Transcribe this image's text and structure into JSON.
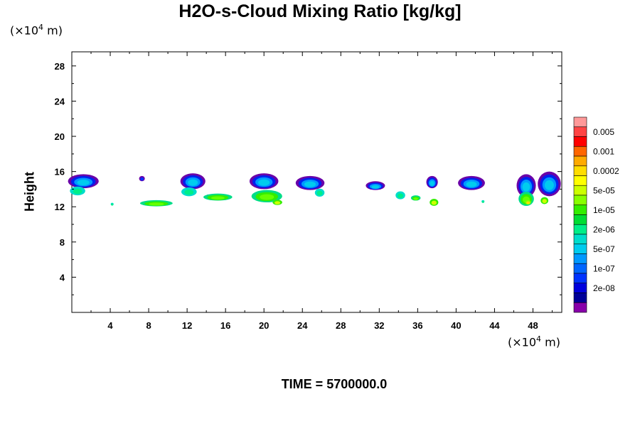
{
  "chart_data": {
    "type": "heatmap",
    "title": "H2O-s-Cloud Mixing Ratio [kg/kg]",
    "ylabel": "Height",
    "xlabel": "",
    "x_unit_prefix": "(×10",
    "x_unit_exp": "4",
    "x_unit_suffix": " m)",
    "y_unit_prefix": "(×10",
    "y_unit_exp": "4",
    "y_unit_suffix": " m)",
    "xlim": [
      0,
      51
    ],
    "ylim": [
      0,
      29.6
    ],
    "xticks": [
      4,
      8,
      12,
      16,
      20,
      24,
      28,
      32,
      36,
      40,
      44,
      48
    ],
    "yticks": [
      4,
      8,
      12,
      16,
      20,
      24,
      28
    ],
    "colorbar": {
      "labels": [
        "0.005",
        "0.001",
        "0.0002",
        "5e-05",
        "1e-05",
        "2e-06",
        "5e-07",
        "1e-07",
        "2e-08"
      ],
      "colors": [
        "#ff9999",
        "#ff4444",
        "#ff0000",
        "#ff6600",
        "#ffaa00",
        "#ffdd00",
        "#ffff00",
        "#ccff00",
        "#88ff00",
        "#33ee00",
        "#00dd33",
        "#00ee88",
        "#00ddcc",
        "#00ccee",
        "#0099ff",
        "#0066ff",
        "#0033ff",
        "#0000dd",
        "#000099",
        "#8800aa"
      ]
    },
    "cloud_blobs": [
      {
        "x": 1.2,
        "y": 14.9,
        "w": 3.2,
        "h": 1.6,
        "level": "5e-07"
      },
      {
        "x": 0.6,
        "y": 13.8,
        "w": 1.6,
        "h": 1.0,
        "level": "2e-06"
      },
      {
        "x": 7.3,
        "y": 15.2,
        "w": 0.6,
        "h": 0.6,
        "level": "1e-07"
      },
      {
        "x": 4.2,
        "y": 12.3,
        "w": 0.3,
        "h": 0.3,
        "level": "2e-06"
      },
      {
        "x": 8.8,
        "y": 12.4,
        "w": 3.4,
        "h": 0.7,
        "level": "1e-05"
      },
      {
        "x": 12.6,
        "y": 14.9,
        "w": 2.6,
        "h": 1.8,
        "level": "5e-07"
      },
      {
        "x": 12.2,
        "y": 13.7,
        "w": 1.6,
        "h": 1.0,
        "level": "2e-06"
      },
      {
        "x": 14.2,
        "y": 13.2,
        "w": 0.4,
        "h": 0.4,
        "level": "1e-07"
      },
      {
        "x": 15.2,
        "y": 13.1,
        "w": 3.0,
        "h": 0.8,
        "level": "1e-05"
      },
      {
        "x": 20.0,
        "y": 14.9,
        "w": 3.0,
        "h": 1.8,
        "level": "5e-07"
      },
      {
        "x": 20.3,
        "y": 13.2,
        "w": 3.2,
        "h": 1.4,
        "level": "1e-05"
      },
      {
        "x": 21.4,
        "y": 12.5,
        "w": 1.0,
        "h": 0.6,
        "level": "5e-05"
      },
      {
        "x": 24.8,
        "y": 14.7,
        "w": 3.0,
        "h": 1.6,
        "level": "5e-07"
      },
      {
        "x": 25.8,
        "y": 13.6,
        "w": 1.0,
        "h": 0.9,
        "level": "2e-06"
      },
      {
        "x": 31.6,
        "y": 14.4,
        "w": 2.0,
        "h": 1.0,
        "level": "5e-07"
      },
      {
        "x": 34.2,
        "y": 13.3,
        "w": 1.0,
        "h": 0.9,
        "level": "2e-06"
      },
      {
        "x": 35.8,
        "y": 13.0,
        "w": 1.0,
        "h": 0.6,
        "level": "1e-05"
      },
      {
        "x": 37.7,
        "y": 12.5,
        "w": 0.9,
        "h": 0.8,
        "level": "5e-05"
      },
      {
        "x": 37.5,
        "y": 14.8,
        "w": 1.2,
        "h": 1.4,
        "level": "5e-07"
      },
      {
        "x": 41.6,
        "y": 14.7,
        "w": 2.8,
        "h": 1.6,
        "level": "5e-07"
      },
      {
        "x": 42.8,
        "y": 12.6,
        "w": 0.3,
        "h": 0.3,
        "level": "2e-06"
      },
      {
        "x": 47.3,
        "y": 14.4,
        "w": 2.0,
        "h": 2.6,
        "level": "5e-07"
      },
      {
        "x": 49.7,
        "y": 14.6,
        "w": 2.4,
        "h": 2.8,
        "level": "5e-07"
      },
      {
        "x": 47.3,
        "y": 12.9,
        "w": 1.6,
        "h": 1.6,
        "level": "1e-05"
      },
      {
        "x": 49.2,
        "y": 12.7,
        "w": 0.8,
        "h": 0.8,
        "level": "5e-05"
      },
      {
        "x": 47.5,
        "y": 12.5,
        "w": 0.6,
        "h": 0.5,
        "level": "0.0002"
      }
    ]
  },
  "time_label": "TIME = 5700000.0"
}
